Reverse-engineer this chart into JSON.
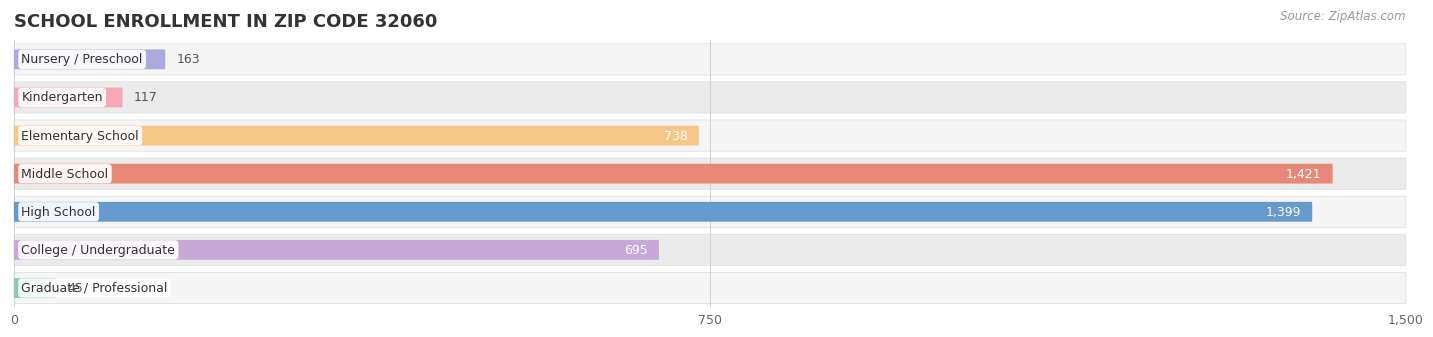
{
  "title": "SCHOOL ENROLLMENT IN ZIP CODE 32060",
  "source": "Source: ZipAtlas.com",
  "categories": [
    "Nursery / Preschool",
    "Kindergarten",
    "Elementary School",
    "Middle School",
    "High School",
    "College / Undergraduate",
    "Graduate / Professional"
  ],
  "values": [
    163,
    117,
    738,
    1421,
    1399,
    695,
    45
  ],
  "colors": [
    "#aaaadd",
    "#f4a8b8",
    "#f5c888",
    "#e88878",
    "#6699cc",
    "#c8a8d8",
    "#88c8c0"
  ],
  "row_bg_light": "#f5f5f5",
  "row_bg_dark": "#ebebeb",
  "row_border": "#dddddd",
  "xlim_max": 1500,
  "xticks": [
    0,
    750,
    1500
  ],
  "title_fontsize": 13,
  "label_fontsize": 9,
  "value_fontsize": 9,
  "source_fontsize": 8.5
}
